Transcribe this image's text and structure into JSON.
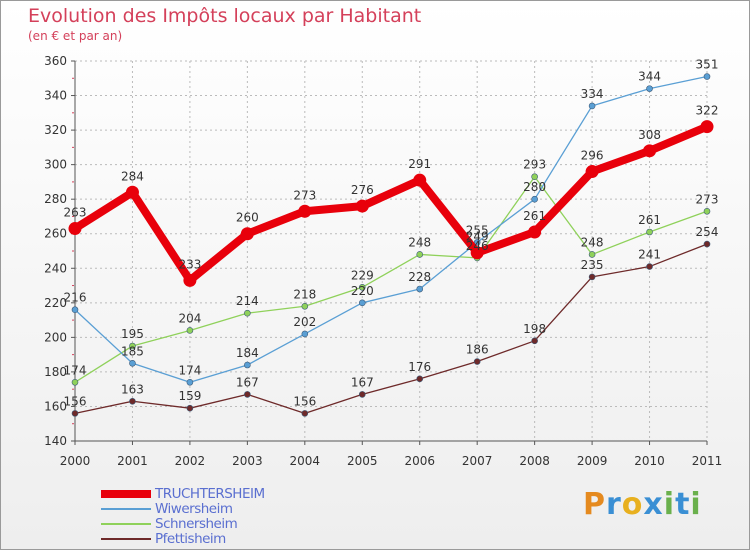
{
  "title": "Evolution des Impôts locaux par Habitant",
  "subtitle": "(en € et par an)",
  "brand": "Proxiti",
  "chart_data": {
    "type": "line",
    "title": "Evolution des Impôts locaux par Habitant",
    "subtitle": "(en € et par an)",
    "xlabel": "",
    "ylabel": "",
    "x": [
      "2000",
      "2001",
      "2002",
      "2003",
      "2004",
      "2005",
      "2006",
      "2007",
      "2008",
      "2009",
      "2010",
      "2011"
    ],
    "ylim": [
      140,
      360
    ],
    "yticks": [
      140,
      160,
      180,
      200,
      220,
      240,
      260,
      280,
      300,
      320,
      340,
      360
    ],
    "grid": true,
    "legend_position": "bottom-left",
    "series": [
      {
        "name": "TRUCHTERSHEIM",
        "color": "#e8000b",
        "values": [
          263,
          284,
          233,
          260,
          273,
          276,
          291,
          249,
          261,
          296,
          308,
          322
        ]
      },
      {
        "name": "Wiwersheim",
        "color": "#5a9fd4",
        "values": [
          216,
          185,
          174,
          184,
          202,
          220,
          228,
          255,
          280,
          334,
          344,
          351
        ]
      },
      {
        "name": "Schnersheim",
        "color": "#8fd15a",
        "values": [
          174,
          195,
          204,
          214,
          218,
          229,
          248,
          246,
          293,
          248,
          261,
          273
        ]
      },
      {
        "name": "Pfettisheim",
        "color": "#6e2a2a",
        "values": [
          156,
          163,
          159,
          167,
          156,
          167,
          176,
          186,
          198,
          235,
          241,
          254
        ]
      }
    ]
  },
  "brand_colors": [
    "#e58a1f",
    "#3a8fd4",
    "#e8b01f",
    "#3a8fd4",
    "#6ab04c",
    "#3a8fd4",
    "#6ab04c"
  ]
}
